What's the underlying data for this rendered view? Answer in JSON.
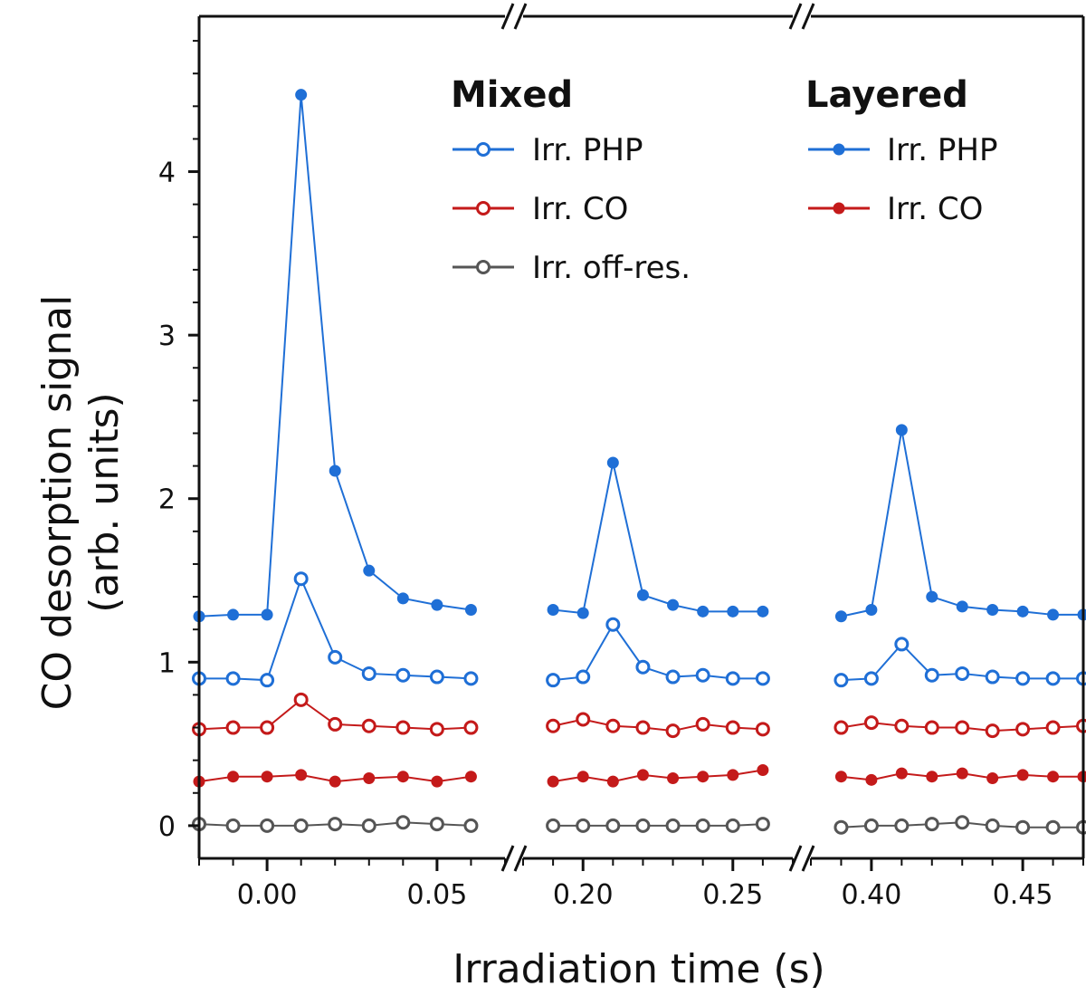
{
  "chart_data": {
    "type": "line",
    "xlabel": "Irradiation time (s)",
    "ylabel_line1": "CO desorption signal",
    "ylabel_line2": "(arb. units)",
    "ylim": [
      -0.2,
      4.95
    ],
    "yticks": [
      0,
      1,
      2,
      3,
      4
    ],
    "segments": [
      {
        "xlim": [
          -0.02,
          0.07
        ],
        "ticks": [
          0.0,
          0.05
        ],
        "tick_labels": [
          "0.00",
          "0.05"
        ]
      },
      {
        "xlim": [
          0.18,
          0.27
        ],
        "ticks": [
          0.2,
          0.25
        ],
        "tick_labels": [
          "0.20",
          "0.25"
        ]
      },
      {
        "xlim": [
          0.38,
          0.47
        ],
        "ticks": [
          0.4,
          0.45
        ],
        "tick_labels": [
          "0.40",
          "0.45"
        ]
      }
    ],
    "legend": {
      "mixed_title": "Mixed",
      "layered_title": "Layered",
      "mixed_entries": [
        "Irr. PHP",
        "Irr. CO",
        "Irr. off-res."
      ],
      "layered_entries": [
        "Irr. PHP",
        "Irr. CO"
      ]
    },
    "series": [
      {
        "name": "Layered Irr. PHP",
        "group": "Layered",
        "marker": "filled",
        "color": "#1f6fd6",
        "segments": [
          {
            "x": [
              -0.02,
              -0.01,
              0.0,
              0.01,
              0.02,
              0.03,
              0.04,
              0.05,
              0.06
            ],
            "y": [
              1.28,
              1.29,
              1.29,
              4.47,
              2.17,
              1.56,
              1.39,
              1.35,
              1.32
            ]
          },
          {
            "x": [
              0.19,
              0.2,
              0.21,
              0.22,
              0.23,
              0.24,
              0.25,
              0.26
            ],
            "y": [
              1.32,
              1.3,
              2.22,
              1.41,
              1.35,
              1.31,
              1.31,
              1.31
            ]
          },
          {
            "x": [
              0.39,
              0.4,
              0.41,
              0.42,
              0.43,
              0.44,
              0.45,
              0.46,
              0.47
            ],
            "y": [
              1.28,
              1.32,
              2.42,
              1.4,
              1.34,
              1.32,
              1.31,
              1.29,
              1.29
            ]
          }
        ]
      },
      {
        "name": "Mixed Irr. PHP",
        "group": "Mixed",
        "marker": "open",
        "color": "#1f6fd6",
        "segments": [
          {
            "x": [
              -0.02,
              -0.01,
              0.0,
              0.01,
              0.02,
              0.03,
              0.04,
              0.05,
              0.06
            ],
            "y": [
              0.9,
              0.9,
              0.89,
              1.51,
              1.03,
              0.93,
              0.92,
              0.91,
              0.9
            ]
          },
          {
            "x": [
              0.19,
              0.2,
              0.21,
              0.22,
              0.23,
              0.24,
              0.25,
              0.26
            ],
            "y": [
              0.89,
              0.91,
              1.23,
              0.97,
              0.91,
              0.92,
              0.9,
              0.9
            ]
          },
          {
            "x": [
              0.39,
              0.4,
              0.41,
              0.42,
              0.43,
              0.44,
              0.45,
              0.46,
              0.47
            ],
            "y": [
              0.89,
              0.9,
              1.11,
              0.92,
              0.93,
              0.91,
              0.9,
              0.9,
              0.9
            ]
          }
        ]
      },
      {
        "name": "Mixed Irr. CO",
        "group": "Mixed",
        "marker": "open",
        "color": "#c41a1a",
        "segments": [
          {
            "x": [
              -0.02,
              -0.01,
              0.0,
              0.01,
              0.02,
              0.03,
              0.04,
              0.05,
              0.06
            ],
            "y": [
              0.59,
              0.6,
              0.6,
              0.77,
              0.62,
              0.61,
              0.6,
              0.59,
              0.6
            ]
          },
          {
            "x": [
              0.19,
              0.2,
              0.21,
              0.22,
              0.23,
              0.24,
              0.25,
              0.26
            ],
            "y": [
              0.61,
              0.65,
              0.61,
              0.6,
              0.58,
              0.62,
              0.6,
              0.59
            ]
          },
          {
            "x": [
              0.39,
              0.4,
              0.41,
              0.42,
              0.43,
              0.44,
              0.45,
              0.46,
              0.47
            ],
            "y": [
              0.6,
              0.63,
              0.61,
              0.6,
              0.6,
              0.58,
              0.59,
              0.6,
              0.61
            ]
          }
        ]
      },
      {
        "name": "Layered Irr. CO",
        "group": "Layered",
        "marker": "filled",
        "color": "#c41a1a",
        "segments": [
          {
            "x": [
              -0.02,
              -0.01,
              0.0,
              0.01,
              0.02,
              0.03,
              0.04,
              0.05,
              0.06
            ],
            "y": [
              0.27,
              0.3,
              0.3,
              0.31,
              0.27,
              0.29,
              0.3,
              0.27,
              0.3
            ]
          },
          {
            "x": [
              0.19,
              0.2,
              0.21,
              0.22,
              0.23,
              0.24,
              0.25,
              0.26
            ],
            "y": [
              0.27,
              0.3,
              0.27,
              0.31,
              0.29,
              0.3,
              0.31,
              0.34
            ]
          },
          {
            "x": [
              0.39,
              0.4,
              0.41,
              0.42,
              0.43,
              0.44,
              0.45,
              0.46,
              0.47
            ],
            "y": [
              0.3,
              0.28,
              0.32,
              0.3,
              0.32,
              0.29,
              0.31,
              0.3,
              0.3
            ]
          }
        ]
      },
      {
        "name": "Mixed Irr. off-res.",
        "group": "Mixed",
        "marker": "open",
        "color": "#555555",
        "segments": [
          {
            "x": [
              -0.02,
              -0.01,
              0.0,
              0.01,
              0.02,
              0.03,
              0.04,
              0.05,
              0.06
            ],
            "y": [
              0.01,
              0.0,
              0.0,
              0.0,
              0.01,
              0.0,
              0.02,
              0.01,
              0.0
            ]
          },
          {
            "x": [
              0.19,
              0.2,
              0.21,
              0.22,
              0.23,
              0.24,
              0.25,
              0.26
            ],
            "y": [
              0.0,
              0.0,
              0.0,
              0.0,
              0.0,
              0.0,
              0.0,
              0.01
            ]
          },
          {
            "x": [
              0.39,
              0.4,
              0.41,
              0.42,
              0.43,
              0.44,
              0.45,
              0.46,
              0.47
            ],
            "y": [
              -0.01,
              0.0,
              0.0,
              0.01,
              0.02,
              0.0,
              -0.01,
              -0.01,
              -0.01
            ]
          }
        ]
      }
    ]
  }
}
